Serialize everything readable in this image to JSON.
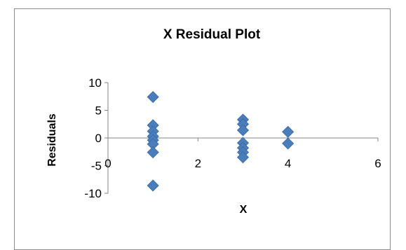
{
  "chart_data": {
    "type": "scatter",
    "title": "X  Residual Plot",
    "xlabel": "X",
    "ylabel": "Residuals",
    "xlim": [
      0,
      6
    ],
    "ylim": [
      -10,
      10
    ],
    "x_ticks": [
      0,
      2,
      4,
      6
    ],
    "y_ticks": [
      10,
      5,
      0,
      -5,
      -10
    ],
    "grid": false,
    "legend": "none",
    "marker": "diamond",
    "marker_color": "#4a7ebb",
    "points": [
      {
        "x": 1,
        "y": 7.4
      },
      {
        "x": 1,
        "y": 2.3
      },
      {
        "x": 1,
        "y": 1.2
      },
      {
        "x": 1,
        "y": 0.3
      },
      {
        "x": 1,
        "y": -0.4
      },
      {
        "x": 1,
        "y": -1.1
      },
      {
        "x": 1,
        "y": -2.6
      },
      {
        "x": 1,
        "y": -8.6
      },
      {
        "x": 3,
        "y": 3.3
      },
      {
        "x": 3,
        "y": 2.5
      },
      {
        "x": 3,
        "y": 1.4
      },
      {
        "x": 3,
        "y": -0.9
      },
      {
        "x": 3,
        "y": -1.8
      },
      {
        "x": 3,
        "y": -2.6
      },
      {
        "x": 3,
        "y": -3.5
      },
      {
        "x": 4,
        "y": 1.1
      },
      {
        "x": 4,
        "y": -1.0
      }
    ]
  }
}
